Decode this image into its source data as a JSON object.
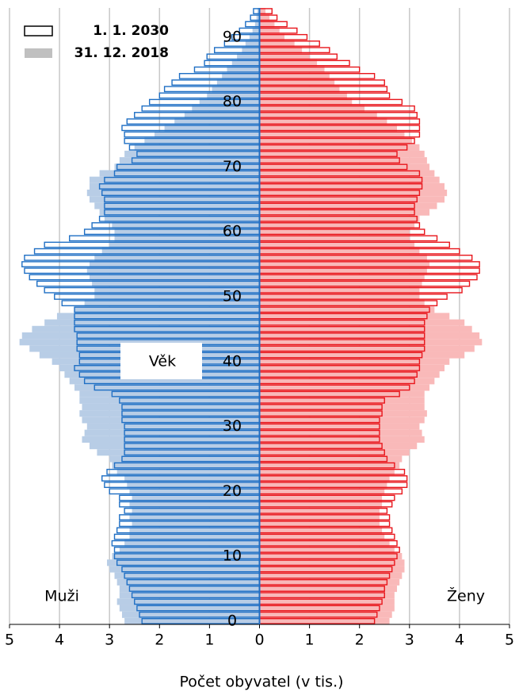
{
  "chart_data": {
    "type": "pyramid",
    "xlabel": "Počet obyvatel (v tis.)",
    "age_label": "Věk",
    "side_labels": [
      "Muži",
      "Ženy"
    ],
    "xlim": [
      -5,
      5
    ],
    "xticks": [
      {
        "value": -5,
        "label": "5"
      },
      {
        "value": -4,
        "label": "4"
      },
      {
        "value": -3,
        "label": "3"
      },
      {
        "value": -2,
        "label": "2"
      },
      {
        "value": -1,
        "label": "1"
      },
      0,
      1,
      2,
      3,
      4,
      5
    ],
    "ylim": [
      -0.5,
      94.5
    ],
    "yticks": [
      0,
      10,
      20,
      30,
      40,
      50,
      60,
      70,
      80,
      90
    ],
    "grid": true,
    "ages": [
      0,
      1,
      2,
      3,
      4,
      5,
      6,
      7,
      8,
      9,
      10,
      11,
      12,
      13,
      14,
      15,
      16,
      17,
      18,
      19,
      20,
      21,
      22,
      23,
      24,
      25,
      26,
      27,
      28,
      29,
      30,
      31,
      32,
      33,
      34,
      35,
      36,
      37,
      38,
      39,
      40,
      41,
      42,
      43,
      44,
      45,
      46,
      47,
      48,
      49,
      50,
      51,
      52,
      53,
      54,
      55,
      56,
      57,
      58,
      59,
      60,
      61,
      62,
      63,
      64,
      65,
      66,
      67,
      68,
      69,
      70,
      71,
      72,
      73,
      74,
      75,
      76,
      77,
      78,
      79,
      80,
      81,
      82,
      83,
      84,
      85,
      86,
      87,
      88,
      89,
      90,
      91,
      92,
      93,
      94
    ],
    "series": [
      {
        "name": "31. 12. 2018",
        "filled": true,
        "legend_color": "#c0c0c0",
        "colors": {
          "male": "#b8cde6",
          "female": "#f9b9b9"
        },
        "male": [
          2.7,
          2.75,
          2.8,
          2.85,
          2.8,
          2.8,
          2.85,
          2.9,
          3.0,
          3.05,
          2.95,
          2.8,
          2.7,
          2.6,
          2.6,
          2.55,
          2.6,
          2.55,
          2.6,
          2.55,
          2.6,
          2.65,
          2.7,
          2.85,
          2.95,
          3.0,
          3.25,
          3.4,
          3.55,
          3.5,
          3.45,
          3.55,
          3.6,
          3.55,
          3.6,
          3.6,
          3.7,
          3.8,
          3.9,
          4.0,
          4.15,
          4.4,
          4.6,
          4.8,
          4.75,
          4.55,
          4.3,
          4.05,
          3.7,
          3.5,
          3.3,
          3.3,
          3.35,
          3.4,
          3.45,
          3.4,
          3.3,
          3.15,
          3.0,
          2.9,
          2.9,
          2.95,
          3.1,
          3.2,
          3.3,
          3.4,
          3.45,
          3.4,
          3.4,
          3.2,
          2.9,
          2.8,
          2.7,
          2.5,
          2.3,
          2.1,
          1.9,
          1.7,
          1.5,
          1.35,
          1.2,
          1.05,
          0.95,
          0.85,
          0.75,
          0.65,
          0.55,
          0.45,
          0.35,
          0.28,
          0.2,
          0.14,
          0.09,
          0.06,
          0.04
        ],
        "female": [
          2.6,
          2.65,
          2.7,
          2.7,
          2.7,
          2.75,
          2.8,
          2.85,
          2.9,
          2.9,
          2.85,
          2.7,
          2.6,
          2.5,
          2.45,
          2.4,
          2.4,
          2.4,
          2.45,
          2.45,
          2.5,
          2.55,
          2.6,
          2.7,
          2.8,
          2.85,
          3.0,
          3.15,
          3.3,
          3.25,
          3.2,
          3.3,
          3.35,
          3.3,
          3.3,
          3.3,
          3.4,
          3.5,
          3.6,
          3.7,
          3.8,
          4.1,
          4.3,
          4.45,
          4.4,
          4.25,
          4.1,
          3.8,
          3.5,
          3.3,
          3.2,
          3.2,
          3.25,
          3.3,
          3.35,
          3.4,
          3.35,
          3.2,
          3.1,
          3.0,
          3.0,
          3.1,
          3.2,
          3.4,
          3.55,
          3.7,
          3.75,
          3.7,
          3.6,
          3.5,
          3.4,
          3.35,
          3.3,
          3.2,
          3.05,
          2.9,
          2.75,
          2.55,
          2.35,
          2.1,
          1.85,
          1.75,
          1.6,
          1.5,
          1.4,
          1.3,
          1.15,
          1.0,
          0.85,
          0.7,
          0.5,
          0.4,
          0.3,
          0.2,
          0.12
        ]
      },
      {
        "name": "1. 1. 2030",
        "filled": false,
        "legend_color": "#000000",
        "colors": {
          "male": "#1f6fc4",
          "female": "#e8151b"
        },
        "male": [
          2.35,
          2.4,
          2.45,
          2.5,
          2.55,
          2.6,
          2.65,
          2.7,
          2.75,
          2.85,
          2.9,
          2.9,
          2.95,
          2.9,
          2.85,
          2.8,
          2.8,
          2.7,
          2.8,
          2.8,
          3.0,
          3.1,
          3.15,
          3.05,
          2.9,
          2.75,
          2.7,
          2.7,
          2.7,
          2.7,
          2.7,
          2.75,
          2.75,
          2.75,
          2.8,
          2.95,
          3.3,
          3.5,
          3.6,
          3.7,
          3.6,
          3.6,
          3.65,
          3.65,
          3.65,
          3.7,
          3.7,
          3.7,
          3.7,
          3.95,
          4.1,
          4.3,
          4.45,
          4.6,
          4.7,
          4.75,
          4.7,
          4.5,
          4.3,
          3.8,
          3.5,
          3.35,
          3.2,
          3.1,
          3.1,
          3.1,
          3.15,
          3.2,
          3.1,
          2.9,
          2.85,
          2.55,
          2.45,
          2.6,
          2.7,
          2.7,
          2.75,
          2.65,
          2.5,
          2.35,
          2.2,
          2.0,
          1.9,
          1.75,
          1.6,
          1.3,
          1.1,
          1.05,
          0.9,
          0.7,
          0.55,
          0.4,
          0.28,
          0.18,
          0.12
        ],
        "female": [
          2.3,
          2.35,
          2.4,
          2.45,
          2.5,
          2.5,
          2.55,
          2.6,
          2.65,
          2.7,
          2.75,
          2.8,
          2.75,
          2.7,
          2.65,
          2.6,
          2.6,
          2.55,
          2.65,
          2.7,
          2.85,
          2.95,
          2.95,
          2.9,
          2.7,
          2.55,
          2.5,
          2.45,
          2.4,
          2.4,
          2.4,
          2.4,
          2.45,
          2.45,
          2.5,
          2.8,
          3.0,
          3.1,
          3.15,
          3.2,
          3.2,
          3.25,
          3.3,
          3.3,
          3.3,
          3.3,
          3.3,
          3.35,
          3.4,
          3.55,
          3.75,
          4.05,
          4.2,
          4.35,
          4.4,
          4.4,
          4.25,
          4.0,
          3.8,
          3.55,
          3.3,
          3.2,
          3.15,
          3.1,
          3.1,
          3.15,
          3.2,
          3.25,
          3.25,
          3.2,
          2.95,
          2.8,
          2.75,
          2.95,
          3.1,
          3.2,
          3.2,
          3.2,
          3.15,
          3.1,
          2.85,
          2.6,
          2.55,
          2.5,
          2.3,
          2.0,
          1.8,
          1.55,
          1.4,
          1.2,
          0.95,
          0.75,
          0.55,
          0.35,
          0.25
        ]
      }
    ]
  }
}
